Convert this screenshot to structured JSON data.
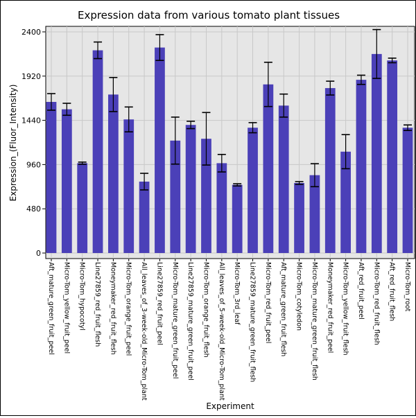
{
  "chart_data": {
    "type": "bar",
    "title": "Expression data from various tomato plant tissues",
    "xlabel": "Experiment",
    "ylabel": "Expression_(Fluor_Intensity)",
    "ylim": [
      -60,
      2460
    ],
    "yticks": [
      0,
      480,
      960,
      1440,
      1920,
      2400
    ],
    "grid": true,
    "bar_color": "#4b40b8",
    "plot_background": "#e6e6e6",
    "categories": [
      "Aft_mature_green_fruit_peel",
      "Micro-Tom_yellow_fruit_peel",
      "Micro-Tom_hypocotyl",
      "Line27859_red_fruit_flesh",
      "Moneymaker_red_fruit_flesh",
      "Micro-Tom_orange_fruit_peel",
      "All_leaves_of_3-week-old_Micro-Tom_plant",
      "Line27859_red_fruit_peel",
      "Micro-Tom_mature_green_fruit_peel",
      "Line27859_mature_green_fruit_peel",
      "Micro-Tom_orange_fruit_flesh",
      "All_leaves_of_5-week-old_Micro-Tom_plant",
      "Micro-Tom_3rd_leaf",
      "Line27859_mature_green_fruit_flesh",
      "Micro-Tom_red_fruit_peel",
      "Aft_mature_green_fruit_flesh",
      "Micro-Tom_cotyledon",
      "Micro-Tom_mature_green_fruit_flesh",
      "Moneymaker_red_fruit_peel",
      "Micro-Tom_yellow_fruit_flesh",
      "Aft_red_fruit_peel",
      "Micro-Tom_red_fruit_flesh",
      "Aft_red_fruit_flesh",
      "Micro-Tom_root"
    ],
    "values": [
      1640,
      1560,
      975,
      2200,
      1720,
      1450,
      775,
      2230,
      1220,
      1390,
      1240,
      975,
      740,
      1360,
      1830,
      1600,
      760,
      845,
      1790,
      1100,
      1880,
      2160,
      2090,
      1360
    ],
    "error": [
      90,
      65,
      12,
      90,
      185,
      135,
      90,
      140,
      255,
      40,
      285,
      95,
      12,
      55,
      240,
      125,
      15,
      125,
      75,
      185,
      50,
      265,
      25,
      30
    ]
  }
}
